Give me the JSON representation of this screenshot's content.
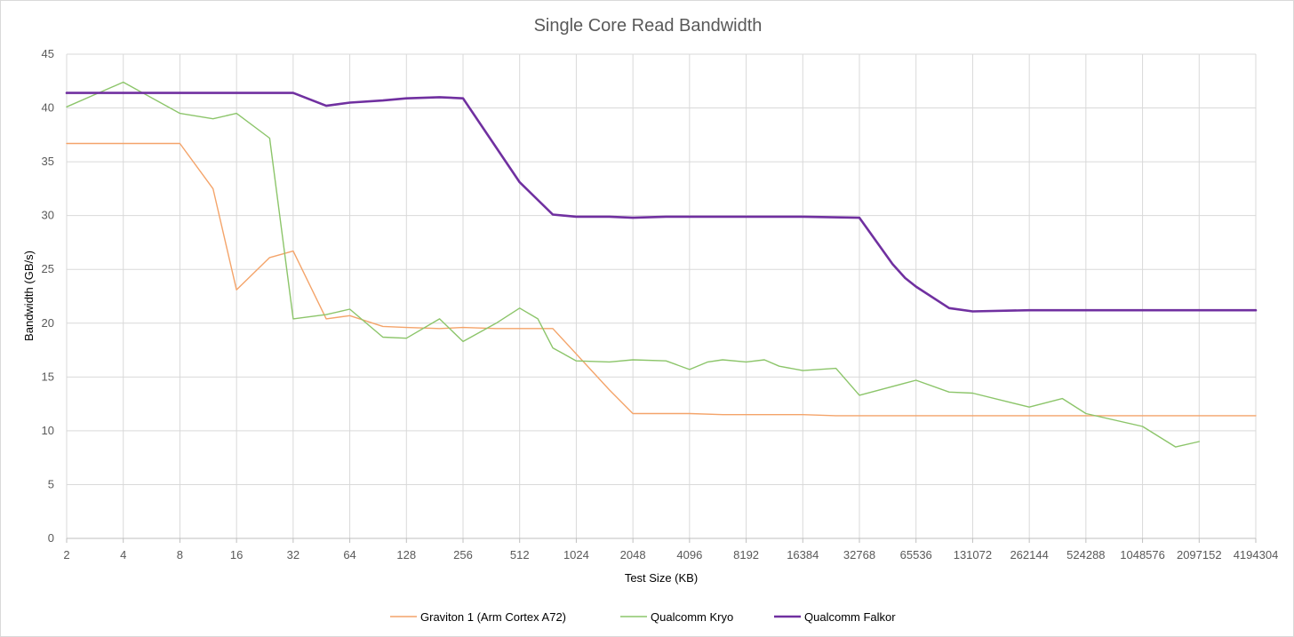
{
  "chart_data": {
    "type": "line",
    "title": "Single Core Read Bandwidth",
    "xlabel": "Test Size (KB)",
    "ylabel": "Bandwidth (GB/s)",
    "x_scale": "log2",
    "x_ticks": [
      "2",
      "4",
      "8",
      "16",
      "32",
      "64",
      "128",
      "256",
      "512",
      "1024",
      "2048",
      "4096",
      "8192",
      "16384",
      "32768",
      "65536",
      "131072",
      "262144",
      "524288",
      "1048576",
      "2097152",
      "4194304"
    ],
    "y_ticks": [
      "0",
      "5",
      "10",
      "15",
      "20",
      "25",
      "30",
      "35",
      "40",
      "45"
    ],
    "ylim": [
      0,
      45
    ],
    "grid": true,
    "legend_position": "bottom",
    "series": [
      {
        "name": "Graviton 1 (Arm Cortex A72)",
        "color": "#f4a46a",
        "x": [
          2,
          4,
          8,
          12,
          16,
          24,
          32,
          48,
          64,
          96,
          128,
          192,
          256,
          384,
          512,
          768,
          1536,
          2048,
          3072,
          4096,
          6144,
          8192,
          12288,
          16384,
          24576,
          32768,
          49152,
          65536,
          131072,
          262144,
          524288,
          1048576,
          2097152,
          4194304
        ],
        "y": [
          36.7,
          36.7,
          36.7,
          32.5,
          23.1,
          26.1,
          26.7,
          20.4,
          20.7,
          19.7,
          19.6,
          19.5,
          19.6,
          19.5,
          19.5,
          19.5,
          13.8,
          11.6,
          11.6,
          11.6,
          11.5,
          11.5,
          11.5,
          11.5,
          11.4,
          11.4,
          11.4,
          11.4,
          11.4,
          11.4,
          11.4,
          11.4,
          11.4,
          11.4
        ]
      },
      {
        "name": "Qualcomm Kryo",
        "color": "#8cc56a",
        "x": [
          2,
          4,
          8,
          12,
          16,
          24,
          32,
          48,
          64,
          96,
          128,
          192,
          256,
          384,
          512,
          640,
          768,
          1024,
          1536,
          2048,
          3072,
          4096,
          5120,
          6144,
          8192,
          10240,
          12288,
          16384,
          24576,
          32768,
          65536,
          98304,
          131072,
          262144,
          393216,
          524288,
          1048576,
          1572864,
          2097152
        ],
        "y": [
          40.1,
          42.4,
          39.5,
          39.0,
          39.5,
          37.2,
          20.4,
          20.8,
          21.3,
          18.7,
          18.6,
          20.4,
          18.3,
          20.0,
          21.4,
          20.4,
          17.7,
          16.5,
          16.4,
          16.6,
          16.5,
          15.7,
          16.4,
          16.6,
          16.4,
          16.6,
          16.0,
          15.6,
          15.8,
          13.3,
          14.7,
          13.6,
          13.5,
          12.2,
          13.0,
          11.6,
          10.4,
          8.5,
          9.0
        ]
      },
      {
        "name": "Qualcomm Falkor",
        "color": "#7030a0",
        "x": [
          2,
          4,
          8,
          16,
          32,
          48,
          64,
          96,
          128,
          192,
          256,
          512,
          768,
          1024,
          1536,
          2048,
          3072,
          4096,
          8192,
          16384,
          32768,
          49152,
          57344,
          65536,
          98304,
          131072,
          262144,
          524288,
          1048576,
          2097152,
          4194304
        ],
        "y": [
          41.4,
          41.4,
          41.4,
          41.4,
          41.4,
          40.2,
          40.5,
          40.7,
          40.9,
          41.0,
          40.9,
          33.1,
          30.1,
          29.9,
          29.9,
          29.8,
          29.9,
          29.9,
          29.9,
          29.9,
          29.8,
          25.5,
          24.2,
          23.4,
          21.4,
          21.1,
          21.2,
          21.2,
          21.2,
          21.2,
          21.2
        ]
      }
    ]
  }
}
